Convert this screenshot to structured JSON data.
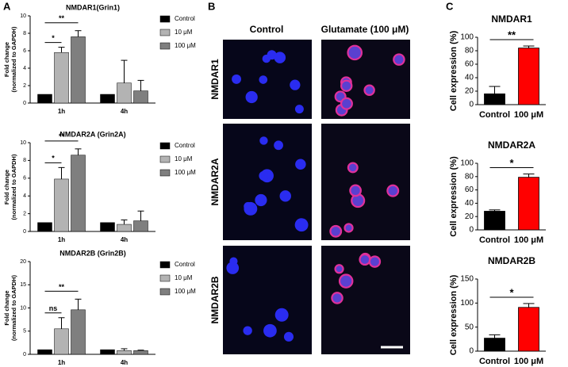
{
  "panel_labels": [
    "A",
    "B",
    "C"
  ],
  "images": {
    "columns": [
      "Control",
      "Glutamate (100 μM)"
    ],
    "rows": [
      "NMDAR1",
      "NMDAR2A",
      "NMDAR2B"
    ]
  },
  "chart_data": [
    {
      "type": "bar",
      "title": "NMDAR1(Grin1)",
      "ylabel": [
        "Fold change",
        "(normalized to GAPDH)"
      ],
      "categories": [
        "1h",
        "4h"
      ],
      "series": [
        {
          "name": "Control",
          "color": "#000000",
          "values": [
            1,
            1
          ]
        },
        {
          "name": "10 μM",
          "color": "#b3b3b3",
          "values": [
            5.8,
            2.3
          ],
          "errors": [
            0.6,
            2.6
          ]
        },
        {
          "name": "100 μM",
          "color": "#7f7f7f",
          "values": [
            7.6,
            1.4
          ],
          "errors": [
            0.7,
            1.2
          ]
        }
      ],
      "ylim": [
        0,
        10
      ],
      "yticks": [
        0,
        2,
        4,
        6,
        8,
        10
      ],
      "annotations": [
        "*",
        "**"
      ]
    },
    {
      "type": "bar",
      "title": "NMDAR2A (Grin2A)",
      "ylabel": [
        "Fold change",
        "(normalized to GAPDH)"
      ],
      "categories": [
        "1h",
        "4h"
      ],
      "series": [
        {
          "name": "Control",
          "color": "#000000",
          "values": [
            1,
            1
          ]
        },
        {
          "name": "10 μM",
          "color": "#b3b3b3",
          "values": [
            5.9,
            0.8
          ],
          "errors": [
            1.3,
            0.5
          ]
        },
        {
          "name": "100 μM",
          "color": "#7f7f7f",
          "values": [
            8.6,
            1.2
          ],
          "errors": [
            0.7,
            1.1
          ]
        }
      ],
      "ylim": [
        0,
        10
      ],
      "yticks": [
        0,
        2,
        4,
        6,
        8,
        10
      ],
      "annotations": [
        "*",
        "**"
      ]
    },
    {
      "type": "bar",
      "title": "NMDAR2B (Grin2B)",
      "ylabel": [
        "Fold change",
        "(normalized to GAPDH)"
      ],
      "categories": [
        "1h",
        "4h"
      ],
      "series": [
        {
          "name": "Control",
          "color": "#000000",
          "values": [
            1,
            1
          ]
        },
        {
          "name": "10 μM",
          "color": "#b3b3b3",
          "values": [
            5.5,
            0.8
          ],
          "errors": [
            2.4,
            0.4
          ]
        },
        {
          "name": "100 μM",
          "color": "#7f7f7f",
          "values": [
            9.6,
            0.8
          ],
          "errors": [
            2.3,
            0.1
          ]
        }
      ],
      "ylim": [
        0,
        20
      ],
      "yticks": [
        0,
        5,
        10,
        15,
        20
      ],
      "annotations": [
        "ns",
        "**"
      ]
    },
    {
      "type": "bar",
      "title": "NMDAR1",
      "ylabel": "Cell expression (%)",
      "categories": [
        "Control",
        "100 μM"
      ],
      "values": [
        16,
        84
      ],
      "errors": [
        11,
        3
      ],
      "colors": [
        "#000000",
        "#ff0000"
      ],
      "ylim": [
        0,
        100
      ],
      "yticks": [
        0,
        20,
        40,
        60,
        80,
        100
      ],
      "annotations": [
        "**"
      ]
    },
    {
      "type": "bar",
      "title": "NMDAR2A",
      "ylabel": "Cell expression (%)",
      "categories": [
        "Control",
        "100 μM"
      ],
      "values": [
        28,
        79
      ],
      "errors": [
        2,
        5
      ],
      "colors": [
        "#000000",
        "#ff0000"
      ],
      "ylim": [
        0,
        100
      ],
      "yticks": [
        0,
        20,
        40,
        60,
        80,
        100
      ],
      "annotations": [
        "*"
      ]
    },
    {
      "type": "bar",
      "title": "NMDAR2B",
      "ylabel": "Cell expression (%)",
      "categories": [
        "Control",
        "100 μM"
      ],
      "values": [
        27,
        91
      ],
      "errors": [
        7,
        8
      ],
      "colors": [
        "#000000",
        "#ff0000"
      ],
      "ylim": [
        0,
        150
      ],
      "yticks": [
        0,
        50,
        100,
        150
      ],
      "annotations": [
        "*"
      ]
    }
  ]
}
